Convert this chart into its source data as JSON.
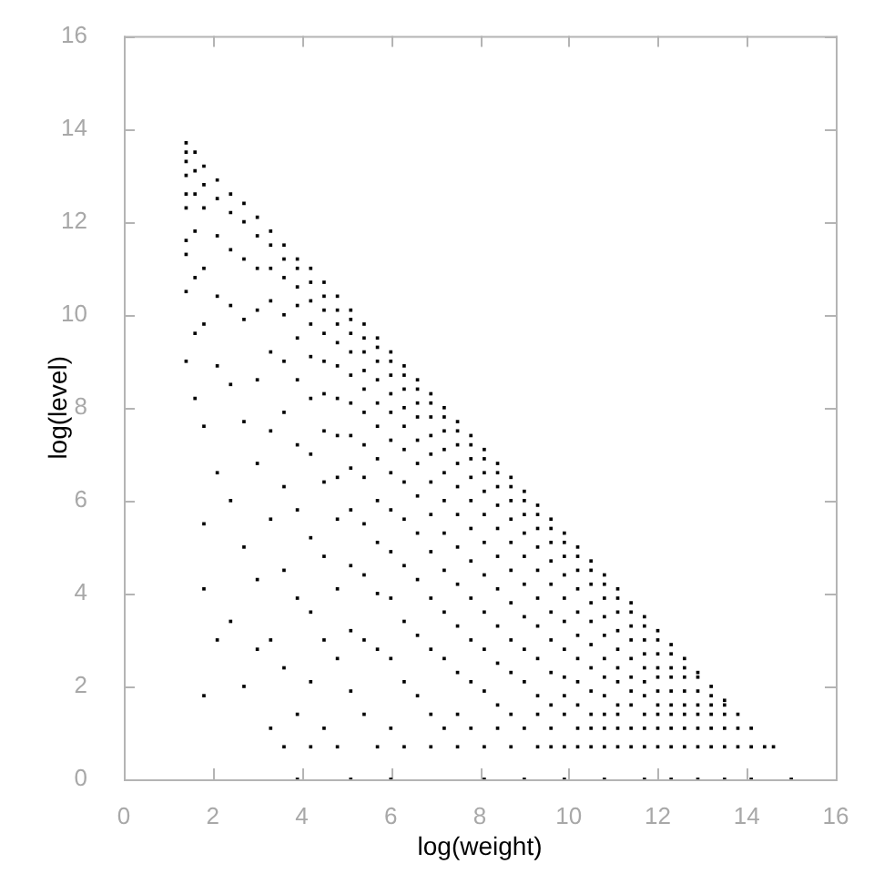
{
  "chart_data": {
    "type": "scatter",
    "xlabel": "log(weight)",
    "ylabel": "log(level)",
    "color": "#000000",
    "marker": "square",
    "xlim": [
      0,
      16
    ],
    "ylim": [
      0,
      16
    ],
    "xticks": [
      0,
      2,
      4,
      6,
      8,
      10,
      12,
      14,
      16
    ],
    "yticks": [
      0,
      2,
      4,
      6,
      8,
      10,
      12,
      14,
      16
    ],
    "x": [
      1.4,
      1.4,
      1.4,
      1.4,
      1.4,
      1.4,
      1.4,
      1.4,
      1.4,
      1.4,
      1.6,
      1.6,
      1.6,
      1.6,
      1.6,
      1.6,
      1.6,
      1.8,
      1.8,
      1.8,
      1.8,
      1.8,
      1.8,
      1.8,
      1.8,
      1.8,
      2.1,
      2.1,
      2.1,
      2.1,
      2.1,
      2.1,
      2.1,
      2.4,
      2.4,
      2.4,
      2.4,
      2.4,
      2.4,
      2.4,
      2.7,
      2.7,
      2.7,
      2.7,
      2.7,
      2.7,
      2.7,
      3.0,
      3.0,
      3.0,
      3.0,
      3.0,
      3.0,
      3.0,
      3.0,
      3.3,
      3.3,
      3.3,
      3.3,
      3.3,
      3.3,
      3.3,
      3.3,
      3.3,
      3.6,
      3.6,
      3.6,
      3.6,
      3.6,
      3.6,
      3.6,
      3.6,
      3.6,
      3.6,
      3.9,
      3.9,
      3.9,
      3.9,
      3.9,
      3.9,
      3.9,
      3.9,
      3.9,
      3.9,
      3.9,
      4.2,
      4.2,
      4.2,
      4.2,
      4.2,
      4.2,
      4.2,
      4.2,
      4.2,
      4.2,
      4.2,
      4.5,
      4.5,
      4.5,
      4.5,
      4.5,
      4.5,
      4.5,
      4.5,
      4.5,
      4.5,
      4.5,
      4.8,
      4.8,
      4.8,
      4.8,
      4.8,
      4.8,
      4.8,
      4.8,
      4.8,
      4.8,
      4.8,
      4.8,
      5.1,
      5.1,
      5.1,
      5.1,
      5.1,
      5.1,
      5.1,
      5.1,
      5.1,
      5.1,
      5.1,
      5.1,
      5.1,
      5.4,
      5.4,
      5.4,
      5.4,
      5.4,
      5.4,
      5.4,
      5.4,
      5.4,
      5.4,
      5.4,
      5.4,
      5.7,
      5.7,
      5.7,
      5.7,
      5.7,
      5.7,
      5.7,
      5.7,
      5.7,
      5.7,
      5.7,
      5.7,
      6.0,
      6.0,
      6.0,
      6.0,
      6.0,
      6.0,
      6.0,
      6.0,
      6.0,
      6.0,
      6.0,
      6.0,
      6.0,
      6.3,
      6.3,
      6.3,
      6.3,
      6.3,
      6.3,
      6.3,
      6.3,
      6.3,
      6.3,
      6.3,
      6.3,
      6.6,
      6.6,
      6.6,
      6.6,
      6.6,
      6.6,
      6.6,
      6.6,
      6.6,
      6.6,
      6.6,
      6.9,
      6.9,
      6.9,
      6.9,
      6.9,
      6.9,
      6.9,
      6.9,
      6.9,
      6.9,
      6.9,
      6.9,
      7.2,
      7.2,
      7.2,
      7.2,
      7.2,
      7.2,
      7.2,
      7.2,
      7.2,
      7.2,
      7.2,
      7.5,
      7.5,
      7.5,
      7.5,
      7.5,
      7.5,
      7.5,
      7.5,
      7.5,
      7.5,
      7.5,
      7.5,
      7.8,
      7.8,
      7.8,
      7.8,
      7.8,
      7.8,
      7.8,
      7.8,
      7.8,
      7.8,
      7.8,
      8.1,
      8.1,
      8.1,
      8.1,
      8.1,
      8.1,
      8.1,
      8.1,
      8.1,
      8.1,
      8.1,
      8.1,
      8.4,
      8.4,
      8.4,
      8.4,
      8.4,
      8.4,
      8.4,
      8.4,
      8.4,
      8.4,
      8.4,
      8.7,
      8.7,
      8.7,
      8.7,
      8.7,
      8.7,
      8.7,
      8.7,
      8.7,
      8.7,
      8.7,
      9.0,
      9.0,
      9.0,
      9.0,
      9.0,
      9.0,
      9.0,
      9.0,
      9.0,
      9.0,
      9.0,
      9.3,
      9.3,
      9.3,
      9.3,
      9.3,
      9.3,
      9.3,
      9.3,
      9.3,
      9.3,
      9.3,
      9.6,
      9.6,
      9.6,
      9.6,
      9.6,
      9.6,
      9.6,
      9.6,
      9.6,
      9.6,
      9.6,
      9.9,
      9.9,
      9.9,
      9.9,
      9.9,
      9.9,
      9.9,
      9.9,
      9.9,
      9.9,
      9.9,
      9.9,
      10.2,
      10.2,
      10.2,
      10.2,
      10.2,
      10.2,
      10.2,
      10.2,
      10.2,
      10.2,
      10.2,
      10.5,
      10.5,
      10.5,
      10.5,
      10.5,
      10.5,
      10.5,
      10.5,
      10.5,
      10.5,
      10.5,
      10.8,
      10.8,
      10.8,
      10.8,
      10.8,
      10.8,
      10.8,
      10.8,
      10.8,
      10.8,
      10.8,
      10.8,
      11.1,
      11.1,
      11.1,
      11.1,
      11.1,
      11.1,
      11.1,
      11.1,
      11.1,
      11.1,
      11.1,
      11.4,
      11.4,
      11.4,
      11.4,
      11.4,
      11.4,
      11.4,
      11.4,
      11.4,
      11.4,
      11.7,
      11.7,
      11.7,
      11.7,
      11.7,
      11.7,
      11.7,
      11.7,
      11.7,
      11.7,
      11.7,
      12.0,
      12.0,
      12.0,
      12.0,
      12.0,
      12.0,
      12.0,
      12.0,
      12.0,
      12.0,
      12.3,
      12.3,
      12.3,
      12.3,
      12.3,
      12.3,
      12.3,
      12.3,
      12.3,
      12.3,
      12.6,
      12.6,
      12.6,
      12.6,
      12.6,
      12.6,
      12.6,
      12.6,
      12.9,
      12.9,
      12.9,
      12.9,
      12.9,
      12.9,
      12.9,
      12.9,
      13.2,
      13.2,
      13.2,
      13.2,
      13.2,
      13.2,
      13.5,
      13.5,
      13.5,
      13.5,
      13.5,
      13.5,
      13.8,
      13.8,
      13.8,
      14.1,
      14.1,
      14.1,
      14.4,
      14.6,
      15.0
    ],
    "values": [
      13.7,
      13.5,
      13.3,
      13.0,
      12.6,
      12.3,
      11.6,
      11.3,
      10.5,
      9.0,
      13.5,
      13.1,
      12.6,
      11.8,
      10.8,
      9.6,
      8.2,
      13.2,
      12.8,
      12.3,
      11.0,
      9.8,
      7.6,
      5.5,
      4.1,
      1.8,
      12.9,
      12.5,
      11.7,
      10.4,
      8.9,
      6.6,
      3.0,
      12.6,
      12.2,
      11.4,
      10.2,
      8.5,
      6.0,
      3.4,
      12.4,
      12.0,
      11.2,
      9.9,
      7.7,
      5.0,
      2.0,
      12.1,
      11.7,
      11.0,
      10.1,
      8.6,
      6.8,
      4.3,
      2.8,
      11.8,
      11.5,
      11.0,
      10.3,
      9.2,
      7.5,
      5.6,
      3.0,
      1.1,
      11.5,
      11.2,
      10.8,
      10.0,
      9.0,
      7.9,
      6.3,
      4.5,
      2.4,
      0.7,
      11.2,
      11.0,
      10.6,
      10.2,
      9.5,
      8.6,
      7.2,
      5.8,
      3.9,
      1.4,
      0,
      11.0,
      10.7,
      10.3,
      9.8,
      9.1,
      8.2,
      7.0,
      5.2,
      3.6,
      2.1,
      0.7,
      10.7,
      10.4,
      10.1,
      9.6,
      9.0,
      8.3,
      7.5,
      6.4,
      4.8,
      3.0,
      1.1,
      10.4,
      10.1,
      9.8,
      9.4,
      8.9,
      8.2,
      7.4,
      6.5,
      5.6,
      4.1,
      2.6,
      0.7,
      10.1,
      9.9,
      9.6,
      9.2,
      8.7,
      8.1,
      7.4,
      6.7,
      5.8,
      4.6,
      3.2,
      1.9,
      0,
      9.8,
      9.5,
      9.2,
      8.8,
      8.4,
      7.9,
      7.2,
      6.5,
      5.5,
      4.4,
      3.0,
      1.4,
      9.5,
      9.3,
      9.0,
      8.6,
      8.1,
      7.6,
      6.9,
      6.0,
      5.1,
      4.0,
      2.8,
      0.7,
      9.2,
      9.0,
      8.7,
      8.3,
      7.9,
      7.3,
      6.6,
      5.8,
      4.9,
      3.9,
      2.6,
      1.1,
      0,
      8.9,
      8.7,
      8.4,
      8.0,
      7.6,
      7.1,
      6.4,
      5.6,
      4.6,
      3.4,
      2.1,
      0.7,
      8.6,
      8.4,
      8.1,
      7.8,
      7.3,
      6.8,
      6.1,
      5.3,
      4.3,
      3.1,
      1.8,
      8.3,
      8.1,
      7.8,
      7.4,
      7.0,
      6.4,
      5.7,
      4.9,
      3.9,
      2.8,
      1.4,
      0.7,
      8.0,
      7.8,
      7.5,
      7.1,
      6.6,
      6.0,
      5.3,
      4.5,
      3.6,
      2.6,
      1.1,
      7.7,
      7.5,
      7.2,
      6.8,
      6.3,
      5.7,
      5.0,
      4.2,
      3.3,
      2.3,
      1.4,
      0.7,
      7.4,
      7.2,
      6.9,
      6.5,
      6.0,
      5.4,
      4.7,
      3.9,
      3.0,
      2.1,
      1.1,
      7.1,
      6.9,
      6.6,
      6.2,
      5.7,
      5.1,
      4.4,
      3.6,
      2.8,
      1.9,
      0.7,
      0,
      6.8,
      6.6,
      6.3,
      5.9,
      5.4,
      4.8,
      4.1,
      3.3,
      2.5,
      1.6,
      1.1,
      6.5,
      6.3,
      6.0,
      5.6,
      5.1,
      4.5,
      3.8,
      3.0,
      2.3,
      1.4,
      0.7,
      6.2,
      6.0,
      5.7,
      5.3,
      4.8,
      4.2,
      3.5,
      2.8,
      2.1,
      1.1,
      0,
      5.9,
      5.7,
      5.4,
      5.0,
      4.5,
      3.9,
      3.3,
      2.6,
      1.8,
      1.4,
      0.7,
      5.6,
      5.4,
      5.1,
      4.7,
      4.2,
      3.6,
      3.0,
      2.3,
      1.6,
      1.1,
      0.7,
      5.3,
      5.1,
      4.8,
      4.4,
      3.9,
      3.4,
      2.8,
      2.2,
      1.8,
      1.4,
      0.7,
      0,
      5.0,
      4.8,
      4.5,
      4.1,
      3.6,
      3.1,
      2.6,
      2.1,
      1.6,
      1.1,
      0.7,
      4.7,
      4.5,
      4.2,
      3.8,
      3.4,
      2.9,
      2.4,
      1.9,
      1.4,
      1.1,
      0.7,
      4.4,
      4.2,
      3.9,
      3.5,
      3.1,
      2.6,
      2.2,
      1.8,
      1.4,
      1.1,
      0.7,
      0,
      4.1,
      3.9,
      3.6,
      3.2,
      2.8,
      2.4,
      2.1,
      1.6,
      1.4,
      1.1,
      0.7,
      3.8,
      3.6,
      3.3,
      3.0,
      2.6,
      2.2,
      1.9,
      1.6,
      1.1,
      0.7,
      3.5,
      3.3,
      3.0,
      2.7,
      2.4,
      2.1,
      1.8,
      1.4,
      1.1,
      0.7,
      0,
      3.2,
      3.0,
      2.7,
      2.4,
      2.2,
      1.9,
      1.6,
      1.4,
      1.1,
      0.7,
      2.9,
      2.7,
      2.4,
      2.2,
      1.9,
      1.6,
      1.4,
      1.1,
      0.7,
      0,
      2.6,
      2.4,
      2.2,
      1.9,
      1.6,
      1.4,
      1.1,
      0.7,
      2.3,
      2.2,
      1.9,
      1.6,
      1.4,
      1.1,
      0.7,
      0,
      2.0,
      1.8,
      1.6,
      1.4,
      1.1,
      0.7,
      1.7,
      1.6,
      1.4,
      1.1,
      0.7,
      0,
      1.4,
      1.1,
      0.7,
      1.1,
      0.7,
      0,
      0.7,
      0.7,
      0
    ]
  }
}
